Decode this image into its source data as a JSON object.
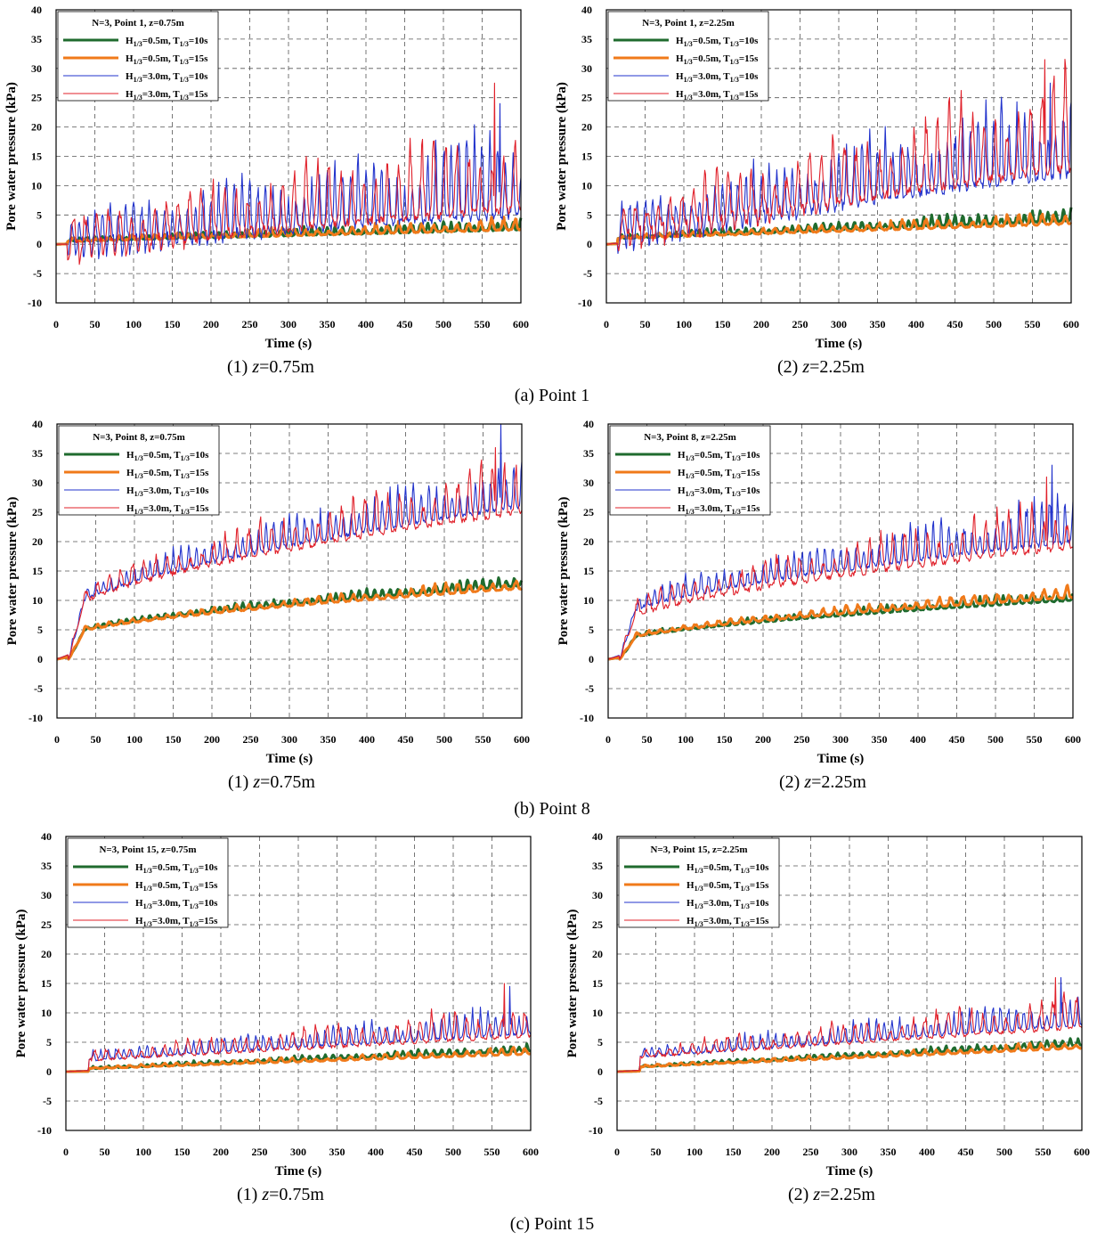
{
  "colors": {
    "h05_t10": "#1f6b2e",
    "h05_t15": "#f07a1a",
    "h30_t10": "#2233cc",
    "h30_t15": "#e0202a",
    "grid": "#555555"
  },
  "axes": {
    "xlabel": "Time (s)",
    "ylabel": "Pore water pressure (kPa)",
    "xlim": [
      0,
      600
    ],
    "ylim": [
      -10,
      40
    ],
    "xticks": [
      "0",
      "50",
      "100",
      "150",
      "200",
      "250",
      "300",
      "350",
      "400",
      "450",
      "500",
      "550",
      "600"
    ],
    "yticks": [
      "40",
      "35",
      "30",
      "25",
      "20",
      "15",
      "10",
      "5",
      "0",
      "-5",
      "-10"
    ]
  },
  "legend_entries": [
    {
      "H": "0.5m",
      "T": "10s",
      "sub": "1/3"
    },
    {
      "H": "0.5m",
      "T": "15s",
      "sub": "1/3"
    },
    {
      "H": "3.0m",
      "T": "10s",
      "sub": "1/3"
    },
    {
      "H": "3.0m",
      "T": "15s",
      "sub": "1/3"
    }
  ],
  "sections": [
    {
      "caption": "(a) Point 1",
      "panels": [
        {
          "sublabel": "(1)",
          "z": "z",
          "zval": "=0.75m"
        },
        {
          "sublabel": "(2)",
          "z": "z",
          "zval": "=2.25m"
        }
      ]
    },
    {
      "caption": "(b) Point 8",
      "panels": [
        {
          "sublabel": "(1)",
          "z": "z",
          "zval": "=0.75m"
        },
        {
          "sublabel": "(2)",
          "z": "z",
          "zval": "=2.25m"
        }
      ]
    },
    {
      "caption": "(c) Point 15",
      "panels": [
        {
          "sublabel": "(1)",
          "z": "z",
          "zval": "=0.75m"
        },
        {
          "sublabel": "(2)",
          "z": "z",
          "zval": "=2.25m"
        }
      ]
    }
  ],
  "chart_data": [
    {
      "type": "line",
      "title": "N=3, Point 1, z=0.75m",
      "xlabel": "Time (s)",
      "ylabel": "Pore water pressure (kPa)",
      "xlim": [
        0,
        600
      ],
      "ylim": [
        -10,
        40
      ],
      "series": [
        {
          "name": "H1/3=0.5m, T1/3=10s",
          "base_start": 0.5,
          "base_end": 2.5,
          "amp": 1.5,
          "period": 10,
          "onset": 15,
          "seed": 1
        },
        {
          "name": "H1/3=0.5m, T1/3=15s",
          "base_start": 0.5,
          "base_end": 2.5,
          "amp": 1.6,
          "period": 15,
          "onset": 15,
          "seed": 2
        },
        {
          "name": "H1/3=3.0m, T1/3=10s",
          "base_start": 0.5,
          "base_end": 5,
          "amp": 12,
          "period": 10,
          "onset": 15,
          "seed": 3,
          "peak": 24
        },
        {
          "name": "H1/3=3.0m, T1/3=15s",
          "base_start": 0.0,
          "base_end": 6,
          "amp": 12,
          "period": 15,
          "onset": 15,
          "seed": 4,
          "peak": 27.5
        }
      ]
    },
    {
      "type": "line",
      "title": "N=3, Point 1, z=2.25m",
      "xlabel": "Time (s)",
      "ylabel": "Pore water pressure (kPa)",
      "xlim": [
        0,
        600
      ],
      "ylim": [
        -10,
        40
      ],
      "series": [
        {
          "name": "H1/3=0.5m, T1/3=10s",
          "base_start": 1,
          "base_end": 4,
          "amp": 1.6,
          "period": 10,
          "onset": 15,
          "seed": 5
        },
        {
          "name": "H1/3=0.5m, T1/3=15s",
          "base_start": 1,
          "base_end": 3.5,
          "amp": 1.5,
          "period": 15,
          "onset": 15,
          "seed": 6
        },
        {
          "name": "H1/3=3.0m, T1/3=10s",
          "base_start": 2,
          "base_end": 12,
          "amp": 12,
          "period": 10,
          "onset": 15,
          "seed": 7,
          "peak": 27.5
        },
        {
          "name": "H1/3=3.0m, T1/3=15s",
          "base_start": 2,
          "base_end": 13,
          "amp": 13,
          "period": 15,
          "onset": 15,
          "seed": 8,
          "peak": 31.5
        }
      ]
    },
    {
      "type": "line",
      "title": "N=3, Point 8, z=0.75m",
      "xlabel": "Time (s)",
      "ylabel": "Pore water pressure (kPa)",
      "xlim": [
        0,
        600
      ],
      "ylim": [
        -10,
        40
      ],
      "series": [
        {
          "name": "H1/3=0.5m, T1/3=10s",
          "base_start": 4,
          "base_end": 12.5,
          "amp": 1.3,
          "period": 10,
          "onset": 15,
          "seed": 9,
          "rise": true
        },
        {
          "name": "H1/3=0.5m, T1/3=15s",
          "base_start": 4,
          "base_end": 12,
          "amp": 1.5,
          "period": 15,
          "onset": 15,
          "seed": 10,
          "rise": true
        },
        {
          "name": "H1/3=3.0m, T1/3=10s",
          "base_start": 8,
          "base_end": 26,
          "amp": 6,
          "period": 10,
          "onset": 15,
          "seed": 11,
          "peak": 40,
          "rise": true
        },
        {
          "name": "H1/3=3.0m, T1/3=15s",
          "base_start": 8,
          "base_end": 25,
          "amp": 7,
          "period": 15,
          "onset": 15,
          "seed": 12,
          "peak": 36,
          "rise": true
        }
      ]
    },
    {
      "type": "line",
      "title": "N=3, Point 8, z=2.25m",
      "xlabel": "Time (s)",
      "ylabel": "Pore water pressure (kPa)",
      "xlim": [
        0,
        600
      ],
      "ylim": [
        -10,
        40
      ],
      "series": [
        {
          "name": "H1/3=0.5m, T1/3=10s",
          "base_start": 3,
          "base_end": 10,
          "amp": 1.3,
          "period": 10,
          "onset": 15,
          "seed": 13,
          "rise": true
        },
        {
          "name": "H1/3=0.5m, T1/3=15s",
          "base_start": 3,
          "base_end": 10.5,
          "amp": 1.5,
          "period": 15,
          "onset": 15,
          "seed": 14,
          "rise": true
        },
        {
          "name": "H1/3=3.0m, T1/3=10s",
          "base_start": 7,
          "base_end": 20,
          "amp": 6,
          "period": 10,
          "onset": 15,
          "seed": 15,
          "peak": 33,
          "rise": true
        },
        {
          "name": "H1/3=3.0m, T1/3=15s",
          "base_start": 6,
          "base_end": 19,
          "amp": 7,
          "period": 15,
          "onset": 15,
          "seed": 16,
          "peak": 31,
          "rise": true
        }
      ]
    },
    {
      "type": "line",
      "title": "N=3, Point 15, z=0.75m",
      "xlabel": "Time (s)",
      "ylabel": "Pore water pressure (kPa)",
      "xlim": [
        0,
        600
      ],
      "ylim": [
        -10,
        40
      ],
      "series": [
        {
          "name": "H1/3=0.5m, T1/3=10s",
          "base_start": 0.5,
          "base_end": 3.5,
          "amp": 0.9,
          "period": 10,
          "onset": 30,
          "seed": 17
        },
        {
          "name": "H1/3=0.5m, T1/3=15s",
          "base_start": 0.5,
          "base_end": 3,
          "amp": 0.9,
          "period": 15,
          "onset": 30,
          "seed": 18
        },
        {
          "name": "H1/3=3.0m, T1/3=10s",
          "base_start": 2,
          "base_end": 6.5,
          "amp": 4,
          "period": 10,
          "onset": 30,
          "seed": 19,
          "peak": 14.5
        },
        {
          "name": "H1/3=3.0m, T1/3=15s",
          "base_start": 2,
          "base_end": 6,
          "amp": 4.5,
          "period": 15,
          "onset": 30,
          "seed": 20,
          "peak": 15
        }
      ]
    },
    {
      "type": "line",
      "title": "N=3, Point 15, z=2.25m",
      "xlabel": "Time (s)",
      "ylabel": "Pore water pressure (kPa)",
      "xlim": [
        0,
        600
      ],
      "ylim": [
        -10,
        40
      ],
      "series": [
        {
          "name": "H1/3=0.5m, T1/3=10s",
          "base_start": 0.8,
          "base_end": 4.5,
          "amp": 0.9,
          "period": 10,
          "onset": 30,
          "seed": 21
        },
        {
          "name": "H1/3=0.5m, T1/3=15s",
          "base_start": 0.8,
          "base_end": 4,
          "amp": 0.9,
          "period": 15,
          "onset": 30,
          "seed": 22
        },
        {
          "name": "H1/3=3.0m, T1/3=10s",
          "base_start": 2.5,
          "base_end": 8,
          "amp": 4,
          "period": 10,
          "onset": 30,
          "seed": 23,
          "peak": 16
        },
        {
          "name": "H1/3=3.0m, T1/3=15s",
          "base_start": 2.5,
          "base_end": 7.5,
          "amp": 4.5,
          "period": 15,
          "onset": 30,
          "seed": 24,
          "peak": 16
        }
      ]
    }
  ]
}
